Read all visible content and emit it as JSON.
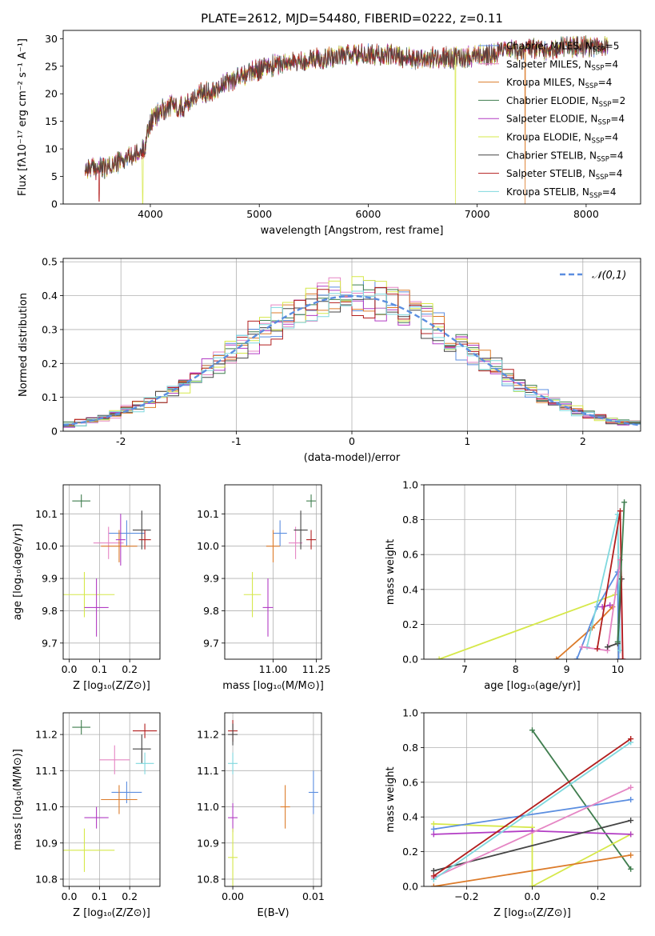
{
  "figure_title": "PLATE=2612, MJD=54480, FIBERID=0222, z=0.11",
  "colors": {
    "chabrier_miles": "#5b8ee0",
    "salpeter_miles": "#e586c4",
    "kroupa_miles": "#dc7b2a",
    "chabrier_elodie": "#3f7d4e",
    "salpeter_elodie": "#b23cc4",
    "kroupa_elodie": "#d6e84a",
    "chabrier_stelib": "#454545",
    "salpeter_stelib": "#b21e1e",
    "kroupa_stelib": "#7fd8de",
    "gauss": "#5b8ee0",
    "grid": "#b0b0b0"
  },
  "chart_data": [
    {
      "id": "spectrum",
      "type": "line",
      "xlabel": "wavelength [Angstrom, rest frame]",
      "ylabel": "Flux [fλ10⁻¹⁷ erg cm⁻² s⁻¹ A⁻¹]",
      "xlim": [
        3200,
        8500
      ],
      "ylim": [
        0,
        31.5
      ],
      "xticks": [
        4000,
        5000,
        6000,
        7000,
        8000
      ],
      "yticks": [
        0,
        5,
        10,
        15,
        20,
        25,
        30
      ],
      "grid": false,
      "legend_loc": "top-right",
      "legend": [
        {
          "label": "Chabrier MILES, N",
          "sub": "SSP",
          "tail": "=5",
          "color_key": "chabrier_miles"
        },
        {
          "label": "Salpeter MILES, N",
          "sub": "SSP",
          "tail": "=4",
          "color_key": "salpeter_miles"
        },
        {
          "label": "Kroupa MILES, N",
          "sub": "SSP",
          "tail": "=4",
          "color_key": "kroupa_miles"
        },
        {
          "label": "Chabrier ELODIE, N",
          "sub": "SSP",
          "tail": "=2",
          "color_key": "chabrier_elodie"
        },
        {
          "label": "Salpeter ELODIE, N",
          "sub": "SSP",
          "tail": "=4",
          "color_key": "salpeter_elodie"
        },
        {
          "label": "Kroupa ELODIE, N",
          "sub": "SSP",
          "tail": "=4",
          "color_key": "kroupa_elodie"
        },
        {
          "label": "Chabrier STELIB, N",
          "sub": "SSP",
          "tail": "=4",
          "color_key": "chabrier_stelib"
        },
        {
          "label": "Salpeter STELIB, N",
          "sub": "SSP",
          "tail": "=4",
          "color_key": "salpeter_stelib"
        },
        {
          "label": "Kroupa STELIB, N",
          "sub": "SSP",
          "tail": "=4",
          "color_key": "kroupa_stelib"
        }
      ],
      "continuum": [
        [
          3400,
          6.5
        ],
        [
          3600,
          6.5
        ],
        [
          3700,
          7.5
        ],
        [
          3800,
          8.5
        ],
        [
          3900,
          9
        ],
        [
          3950,
          10.5
        ],
        [
          4000,
          15
        ],
        [
          4100,
          17
        ],
        [
          4200,
          18
        ],
        [
          4300,
          17.5
        ],
        [
          4400,
          19.5
        ],
        [
          4600,
          21
        ],
        [
          4800,
          23
        ],
        [
          5000,
          24.5
        ],
        [
          5200,
          25.5
        ],
        [
          5400,
          26
        ],
        [
          5600,
          26.5
        ],
        [
          5800,
          27
        ],
        [
          6000,
          27
        ],
        [
          6200,
          27
        ],
        [
          6400,
          26.5
        ],
        [
          6600,
          26.5
        ],
        [
          6800,
          26.5
        ],
        [
          7000,
          27
        ],
        [
          7200,
          27.5
        ],
        [
          7400,
          28
        ],
        [
          7600,
          28
        ],
        [
          7800,
          28.5
        ],
        [
          8000,
          28.5
        ],
        [
          8200,
          29
        ]
      ],
      "dips": [
        {
          "color_key": "salpeter_stelib",
          "x": 3530,
          "y": 0.5
        },
        {
          "color_key": "kroupa_elodie",
          "x": 3930,
          "y": 0
        },
        {
          "color_key": "kroupa_elodie",
          "x": 6800,
          "y": 0
        },
        {
          "color_key": "kroupa_miles",
          "x": 7440,
          "y": 0
        }
      ]
    },
    {
      "id": "residuals",
      "type": "histogram",
      "xlabel": "(data-model)/error",
      "ylabel": "Normed distribution",
      "xlim": [
        -2.5,
        2.5
      ],
      "ylim": [
        0,
        0.51
      ],
      "xticks": [
        -2,
        -1,
        0,
        1,
        2
      ],
      "yticks": [
        0,
        0.1,
        0.2,
        0.3,
        0.4,
        0.5
      ],
      "grid": true,
      "bin_width": 0.1,
      "legend_loc": "top-right",
      "gauss_label": "𝒩(0,1)"
    },
    {
      "id": "age_vs_Z",
      "type": "errorbar",
      "xlabel": "Z [log₁₀(Z/Z⊙)]",
      "ylabel": "age  [log₁₀(age/yr)]",
      "xlim": [
        -0.02,
        0.3
      ],
      "ylim": [
        9.65,
        10.19
      ],
      "xticks": [
        0.0,
        0.1,
        0.2
      ],
      "xticklabels": [
        "0.0",
        "0.1",
        "0.2"
      ],
      "yticks": [
        9.7,
        9.8,
        9.9,
        10.0,
        10.1
      ],
      "yticklabels": [
        "9.7",
        "9.8",
        "9.9",
        "10.0",
        "10.1"
      ],
      "grid": true,
      "points": [
        {
          "color_key": "chabrier_elodie",
          "x": 0.04,
          "xerr": 0.03,
          "y": 10.14,
          "yerr": 0.02
        },
        {
          "color_key": "chabrier_miles",
          "x": 0.19,
          "xerr": 0.06,
          "y": 10.04,
          "yerr": 0.04
        },
        {
          "color_key": "salpeter_miles",
          "x": 0.13,
          "xerr": 0.05,
          "y": 10.01,
          "yerr": 0.05
        },
        {
          "color_key": "kroupa_miles",
          "x": 0.165,
          "xerr": 0.06,
          "y": 10.0,
          "yerr": 0.05
        },
        {
          "color_key": "salpeter_elodie",
          "x": 0.17,
          "xerr": 0.0,
          "y": 10.02,
          "yerr": 0.08
        },
        {
          "color_key": "chabrier_stelib",
          "x": 0.24,
          "xerr": 0.03,
          "y": 10.05,
          "yerr": 0.06
        },
        {
          "color_key": "salpeter_stelib",
          "x": 0.25,
          "xerr": 0.02,
          "y": 10.02,
          "yerr": 0.03
        },
        {
          "color_key": "kroupa_elodie",
          "x": 0.05,
          "xerr": 0.1,
          "y": 9.85,
          "yerr": 0.07
        },
        {
          "color_key": "salpeter_elodie",
          "x": 0.09,
          "xerr": 0.04,
          "y": 9.81,
          "yerr": 0.09
        }
      ]
    },
    {
      "id": "age_vs_mass",
      "type": "errorbar",
      "xlabel": "mass [log₁₀(M/M⊙)]",
      "ylabel": "",
      "xlim": [
        10.72,
        11.28
      ],
      "ylim": [
        9.65,
        10.19
      ],
      "xticks": [
        11.0,
        11.25
      ],
      "xticklabels": [
        "11.00",
        "11.25"
      ],
      "yticks": [
        9.7,
        9.8,
        9.9,
        10.0,
        10.1
      ],
      "yticklabels": [
        "9.7",
        "9.8",
        "9.9",
        "10.0",
        "10.1"
      ],
      "grid": true,
      "points": [
        {
          "color_key": "chabrier_elodie",
          "x": 11.22,
          "xerr": 0.02,
          "y": 10.14,
          "yerr": 0.02
        },
        {
          "color_key": "chabrier_miles",
          "x": 11.04,
          "xerr": 0.04,
          "y": 10.04,
          "yerr": 0.04
        },
        {
          "color_key": "salpeter_miles",
          "x": 11.13,
          "xerr": 0.04,
          "y": 10.01,
          "yerr": 0.05
        },
        {
          "color_key": "kroupa_miles",
          "x": 11.0,
          "xerr": 0.04,
          "y": 10.0,
          "yerr": 0.05
        },
        {
          "color_key": "chabrier_stelib",
          "x": 11.16,
          "xerr": 0.04,
          "y": 10.05,
          "yerr": 0.06
        },
        {
          "color_key": "salpeter_stelib",
          "x": 11.22,
          "xerr": 0.02,
          "y": 10.02,
          "yerr": 0.03
        },
        {
          "color_key": "kroupa_elodie",
          "x": 10.88,
          "xerr": 0.05,
          "y": 9.85,
          "yerr": 0.07
        },
        {
          "color_key": "salpeter_elodie",
          "x": 10.97,
          "xerr": 0.03,
          "y": 9.81,
          "yerr": 0.09
        }
      ]
    },
    {
      "id": "mass_weight_vs_age",
      "type": "line",
      "xlabel": "age  [log₁₀(age/yr)]",
      "ylabel": "mass weight",
      "xlim": [
        6.2,
        10.45
      ],
      "ylim": [
        0,
        1.0
      ],
      "xticks": [
        7,
        8,
        9,
        10
      ],
      "xticklabels": [
        "7",
        "8",
        "9",
        "10"
      ],
      "yticks": [
        0,
        0.2,
        0.4,
        0.6,
        0.8,
        1.0
      ],
      "yticklabels": [
        "0.0",
        "0.2",
        "0.4",
        "0.6",
        "0.8",
        "1.0"
      ],
      "grid": true,
      "series": [
        {
          "color_key": "kroupa_elodie",
          "points": [
            [
              6.5,
              0.0
            ],
            [
              9.95,
              0.37
            ]
          ]
        },
        {
          "color_key": "kroupa_miles",
          "points": [
            [
              8.8,
              0.0
            ],
            [
              9.5,
              0.18
            ],
            [
              9.9,
              0.3
            ]
          ]
        },
        {
          "color_key": "chabrier_miles",
          "points": [
            [
              9.2,
              0.0
            ],
            [
              9.6,
              0.3
            ],
            [
              10.0,
              0.5
            ],
            [
              10.02,
              0.0
            ]
          ]
        },
        {
          "color_key": "kroupa_stelib",
          "points": [
            [
              9.4,
              0.07
            ],
            [
              10.0,
              0.83
            ],
            [
              10.05,
              0.05
            ]
          ]
        },
        {
          "color_key": "salpeter_miles",
          "points": [
            [
              9.3,
              0.07
            ],
            [
              9.8,
              0.05
            ],
            [
              10.05,
              0.57
            ],
            [
              10.1,
              0.0
            ]
          ]
        },
        {
          "color_key": "chabrier_stelib",
          "points": [
            [
              9.8,
              0.07
            ],
            [
              10.0,
              0.09
            ],
            [
              10.08,
              0.46
            ]
          ]
        },
        {
          "color_key": "salpeter_elodie",
          "points": [
            [
              9.7,
              0.3
            ],
            [
              9.85,
              0.31
            ]
          ]
        },
        {
          "color_key": "salpeter_stelib",
          "points": [
            [
              9.6,
              0.06
            ],
            [
              10.05,
              0.85
            ],
            [
              10.1,
              0.0
            ]
          ]
        },
        {
          "color_key": "chabrier_elodie",
          "points": [
            [
              10.0,
              0.1
            ],
            [
              10.13,
              0.9
            ]
          ]
        }
      ]
    },
    {
      "id": "mass_vs_Z",
      "type": "errorbar",
      "xlabel": "Z [log₁₀(Z/Z⊙)]",
      "ylabel": "mass [log₁₀(M/M⊙)]",
      "xlim": [
        -0.02,
        0.3
      ],
      "ylim": [
        10.78,
        11.26
      ],
      "xticks": [
        0.0,
        0.1,
        0.2
      ],
      "xticklabels": [
        "0.0",
        "0.1",
        "0.2"
      ],
      "yticks": [
        10.8,
        10.9,
        11.0,
        11.1,
        11.2
      ],
      "yticklabels": [
        "10.8",
        "10.9",
        "11.0",
        "11.1",
        "11.2"
      ],
      "grid": true,
      "points": [
        {
          "color_key": "chabrier_elodie",
          "x": 0.04,
          "xerr": 0.03,
          "y": 11.22,
          "yerr": 0.02
        },
        {
          "color_key": "salpeter_stelib",
          "x": 0.25,
          "xerr": 0.04,
          "y": 11.21,
          "yerr": 0.02
        },
        {
          "color_key": "chabrier_stelib",
          "x": 0.24,
          "xerr": 0.03,
          "y": 11.16,
          "yerr": 0.04
        },
        {
          "color_key": "salpeter_miles",
          "x": 0.15,
          "xerr": 0.05,
          "y": 11.13,
          "yerr": 0.04
        },
        {
          "color_key": "kroupa_stelib",
          "x": 0.25,
          "xerr": 0.03,
          "y": 11.12,
          "yerr": 0.03
        },
        {
          "color_key": "chabrier_miles",
          "x": 0.19,
          "xerr": 0.05,
          "y": 11.04,
          "yerr": 0.03
        },
        {
          "color_key": "kroupa_miles",
          "x": 0.165,
          "xerr": 0.06,
          "y": 11.02,
          "yerr": 0.04
        },
        {
          "color_key": "salpeter_elodie",
          "x": 0.09,
          "xerr": 0.04,
          "y": 10.97,
          "yerr": 0.03
        },
        {
          "color_key": "kroupa_elodie",
          "x": 0.05,
          "xerr": 0.1,
          "y": 10.88,
          "yerr": 0.06
        }
      ]
    },
    {
      "id": "mass_vs_EBV",
      "type": "errorbar",
      "xlabel": "E(B-V)",
      "ylabel": "",
      "xlim": [
        -0.001,
        0.011
      ],
      "ylim": [
        10.78,
        11.26
      ],
      "xticks": [
        0.0,
        0.01
      ],
      "xticklabels": [
        "0.00",
        "0.01"
      ],
      "yticks": [
        10.8,
        10.9,
        11.0,
        11.1,
        11.2
      ],
      "yticklabels": [
        "10.8",
        "10.9",
        "11.0",
        "11.1",
        "11.2"
      ],
      "grid": true,
      "points": [
        {
          "color_key": "salpeter_stelib",
          "x": 0.0,
          "xerr": 0.0,
          "y": 11.21,
          "yerr": 0.03
        },
        {
          "color_key": "chabrier_stelib",
          "x": 0.0,
          "xerr": 0.0,
          "y": 11.2,
          "yerr": 0.03
        },
        {
          "color_key": "kroupa_stelib",
          "x": 0.0,
          "xerr": 0.0,
          "y": 11.12,
          "yerr": 0.03
        },
        {
          "color_key": "salpeter_elodie",
          "x": 0.0,
          "xerr": 0.0,
          "y": 10.97,
          "yerr": 0.04
        },
        {
          "color_key": "kroupa_elodie",
          "x": 0.0,
          "xerr": 0.0,
          "y": 10.86,
          "yerr": 0.08
        },
        {
          "color_key": "kroupa_miles",
          "x": 0.0065,
          "xerr": 0.0,
          "y": 11.0,
          "yerr": 0.06
        },
        {
          "color_key": "chabrier_miles",
          "x": 0.01,
          "xerr": 0.0,
          "y": 11.04,
          "yerr": 0.06
        }
      ]
    },
    {
      "id": "mass_weight_vs_Z",
      "type": "line",
      "xlabel": "Z [log₁₀(Z/Z⊙)]",
      "ylabel": "mass weight",
      "xlim": [
        -0.33,
        0.33
      ],
      "ylim": [
        0,
        1.0
      ],
      "xticks": [
        -0.2,
        0.0,
        0.2
      ],
      "xticklabels": [
        "−0.2",
        "0.0",
        "0.2"
      ],
      "yticks": [
        0,
        0.2,
        0.4,
        0.6,
        0.8,
        1.0
      ],
      "yticklabels": [
        "0.0",
        "0.2",
        "0.4",
        "0.6",
        "0.8",
        "1.0"
      ],
      "grid": true,
      "series": [
        {
          "color_key": "chabrier_elodie",
          "points": [
            [
              0.0,
              0.9
            ],
            [
              0.3,
              0.1
            ]
          ]
        },
        {
          "color_key": "kroupa_elodie",
          "points": [
            [
              -0.3,
              0.36
            ],
            [
              0.0,
              0.34
            ],
            [
              0.0,
              0.0
            ],
            [
              0.3,
              0.3
            ]
          ]
        },
        {
          "color_key": "chabrier_miles",
          "points": [
            [
              -0.3,
              0.33
            ],
            [
              0.3,
              0.5
            ]
          ]
        },
        {
          "color_key": "salpeter_elodie",
          "points": [
            [
              -0.3,
              0.3
            ],
            [
              0.0,
              0.32
            ],
            [
              0.3,
              0.3
            ]
          ]
        },
        {
          "color_key": "kroupa_miles",
          "points": [
            [
              -0.3,
              0.0
            ],
            [
              0.3,
              0.18
            ]
          ]
        },
        {
          "color_key": "chabrier_stelib",
          "points": [
            [
              -0.3,
              0.09
            ],
            [
              0.3,
              0.38
            ]
          ]
        },
        {
          "color_key": "salpeter_miles",
          "points": [
            [
              -0.3,
              0.05
            ],
            [
              0.3,
              0.57
            ]
          ]
        },
        {
          "color_key": "kroupa_stelib",
          "points": [
            [
              -0.3,
              0.04
            ],
            [
              0.3,
              0.83
            ]
          ]
        },
        {
          "color_key": "salpeter_stelib",
          "points": [
            [
              -0.3,
              0.06
            ],
            [
              0.3,
              0.85
            ]
          ]
        }
      ]
    }
  ]
}
